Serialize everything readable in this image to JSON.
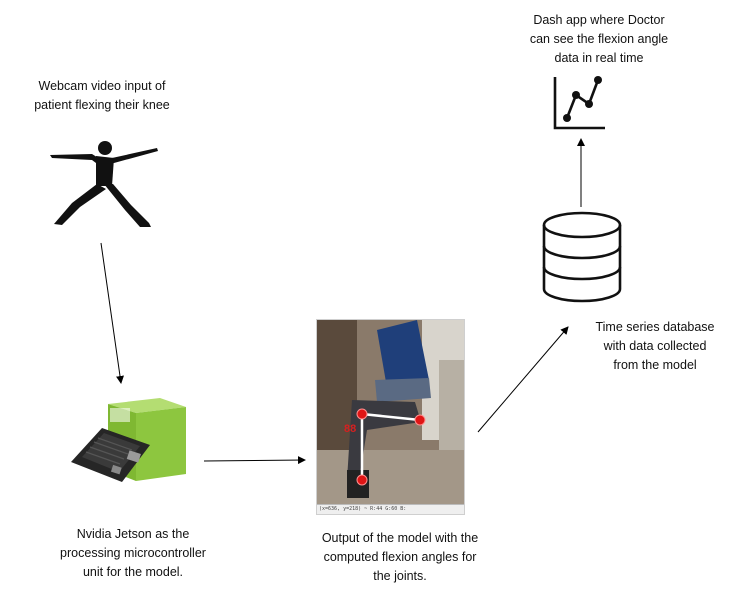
{
  "labels": {
    "webcam": "Webcam video input of\npatient flexing their knee",
    "jetson": "Nvidia Jetson as the\nprocessing microcontroller\nunit for the model.",
    "output": "Output of the model with the\ncomputed flexion angles for\nthe joints.",
    "database": "Time series database\nwith data collected\nfrom the model",
    "dash": "Dash app where Doctor\ncan see the flexion angle\ndata in real time"
  },
  "model_output": {
    "angle": "88",
    "status_bar": "(x=636, y=218) ~ R:44 G:60 B:"
  },
  "colors": {
    "jetson_box": "#8dc63f",
    "keypoint": "#e01515",
    "edge": "#000000"
  },
  "icons": {
    "patient": "person-pose-icon",
    "device": "jetson-board-icon",
    "database": "database-icon",
    "dashboard": "line-chart-icon"
  }
}
